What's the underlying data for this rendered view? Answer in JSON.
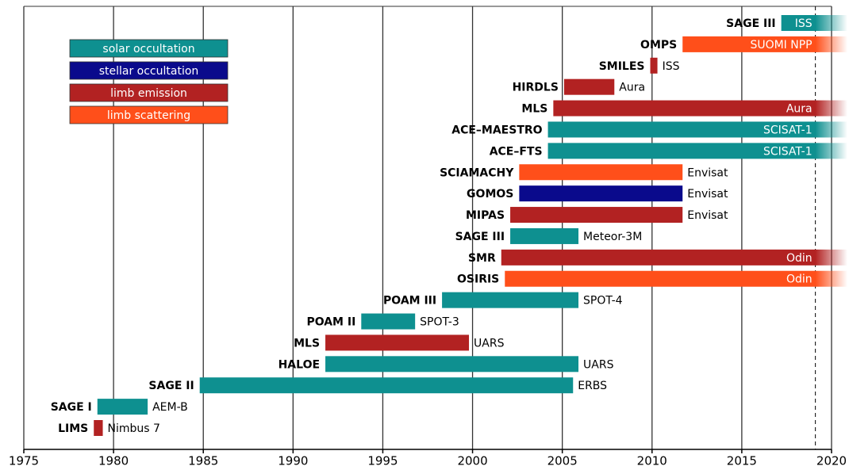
{
  "chart_data": {
    "type": "gantt",
    "xlim": [
      1975,
      2020
    ],
    "xticks": [
      1975,
      1980,
      1985,
      1990,
      1995,
      2000,
      2005,
      2010,
      2015,
      2020
    ],
    "grid": true,
    "reference_line": 2019.1,
    "series": [
      {
        "name": "solar occultation",
        "color": "#0e9090"
      },
      {
        "name": "stellar occultation",
        "color": "#0a0a8c"
      },
      {
        "name": "limb emission",
        "color": "#b22222"
      },
      {
        "name": "limb scattering",
        "color": "#ff4f1a"
      }
    ],
    "tasks": [
      {
        "name": "SAGE III",
        "satellite": "ISS",
        "start": 2017.2,
        "end": 2021,
        "series": 0,
        "ongoing": true
      },
      {
        "name": "OMPS",
        "satellite": "SUOMI NPP",
        "start": 2011.7,
        "end": 2021,
        "series": 3,
        "ongoing": true
      },
      {
        "name": "SMILES",
        "satellite": "ISS",
        "start": 2009.9,
        "end": 2010.3,
        "series": 2,
        "ongoing": false
      },
      {
        "name": "HIRDLS",
        "satellite": "Aura",
        "start": 2005.1,
        "end": 2007.9,
        "series": 2,
        "ongoing": false
      },
      {
        "name": "MLS",
        "satellite": "Aura",
        "start": 2004.5,
        "end": 2021,
        "series": 2,
        "ongoing": true
      },
      {
        "name": "ACE–MAESTRO",
        "satellite": "SCISAT-1",
        "start": 2004.2,
        "end": 2021,
        "series": 0,
        "ongoing": true
      },
      {
        "name": "ACE–FTS",
        "satellite": "SCISAT-1",
        "start": 2004.2,
        "end": 2021,
        "series": 0,
        "ongoing": true
      },
      {
        "name": "SCIAMACHY",
        "satellite": "Envisat",
        "start": 2002.6,
        "end": 2011.7,
        "series": 3,
        "ongoing": false
      },
      {
        "name": "GOMOS",
        "satellite": "Envisat",
        "start": 2002.6,
        "end": 2011.7,
        "series": 1,
        "ongoing": false
      },
      {
        "name": "MIPAS",
        "satellite": "Envisat",
        "start": 2002.1,
        "end": 2011.7,
        "series": 2,
        "ongoing": false
      },
      {
        "name": "SAGE III",
        "satellite": "Meteor-3M",
        "start": 2002.1,
        "end": 2005.9,
        "series": 0,
        "ongoing": false
      },
      {
        "name": "SMR",
        "satellite": "Odin",
        "start": 2001.6,
        "end": 2021,
        "series": 2,
        "ongoing": true
      },
      {
        "name": "OSIRIS",
        "satellite": "Odin",
        "start": 2001.8,
        "end": 2021,
        "series": 3,
        "ongoing": true
      },
      {
        "name": "POAM III",
        "satellite": "SPOT-4",
        "start": 1998.3,
        "end": 2005.9,
        "series": 0,
        "ongoing": false
      },
      {
        "name": "POAM II",
        "satellite": "SPOT-3",
        "start": 1993.8,
        "end": 1996.8,
        "series": 0,
        "ongoing": false
      },
      {
        "name": "MLS",
        "satellite": "UARS",
        "start": 1991.8,
        "end": 1999.8,
        "series": 2,
        "ongoing": false
      },
      {
        "name": "HALOE",
        "satellite": "UARS",
        "start": 1991.8,
        "end": 2005.9,
        "series": 0,
        "ongoing": false
      },
      {
        "name": "SAGE II",
        "satellite": "ERBS",
        "start": 1984.8,
        "end": 2005.6,
        "series": 0,
        "ongoing": false
      },
      {
        "name": "SAGE I",
        "satellite": "AEM-B",
        "start": 1979.1,
        "end": 1981.9,
        "series": 0,
        "ongoing": false
      },
      {
        "name": "LIMS",
        "satellite": "Nimbus 7",
        "start": 1978.9,
        "end": 1979.4,
        "series": 2,
        "ongoing": false
      }
    ]
  }
}
